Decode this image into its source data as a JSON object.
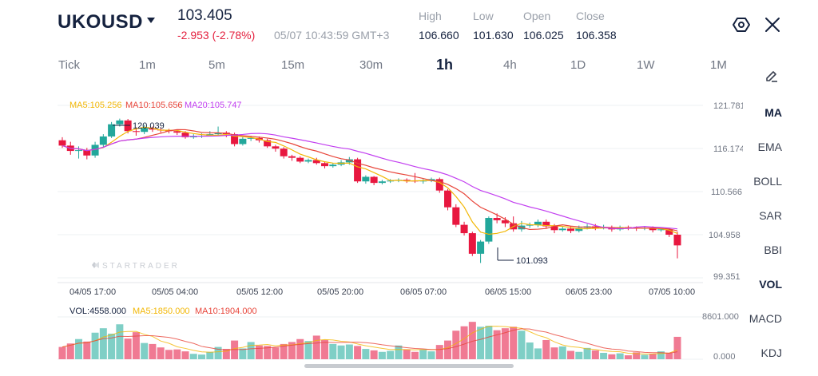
{
  "header": {
    "symbol": "UKOUSD",
    "price": "103.405",
    "change": "-2.953 (-2.78%)",
    "datetime": "05/07 10:43:59 GMT+3",
    "stats": [
      {
        "label": "High",
        "value": "106.660"
      },
      {
        "label": "Low",
        "value": "101.630"
      },
      {
        "label": "Open",
        "value": "106.025"
      },
      {
        "label": "Close",
        "value": "106.358"
      }
    ]
  },
  "timeframes": [
    "Tick",
    "1m",
    "5m",
    "15m",
    "30m",
    "1h",
    "4h",
    "1D",
    "1W",
    "1M"
  ],
  "active_timeframe": "1h",
  "indicators": [
    "MA",
    "EMA",
    "BOLL",
    "SAR",
    "BBI",
    "VOL",
    "MACD",
    "KDJ"
  ],
  "active_indicators": [
    "MA",
    "VOL"
  ],
  "main_legend": {
    "ma5": "MA5:105.256",
    "ma10": "MA10:105.656",
    "ma20": "MA20:105.747"
  },
  "vol_legend": {
    "vol": "VOL:4558.000",
    "ma5": "MA5:1850.000",
    "ma10": "MA10:1904.000"
  },
  "price_axis": [
    "121.781",
    "116.174",
    "110.566",
    "104.958",
    "99.351"
  ],
  "vol_axis": [
    "8601.000",
    "0.000"
  ],
  "time_axis": [
    "04/05 17:00",
    "05/05 04:00",
    "05/05 12:00",
    "05/05 20:00",
    "06/05 07:00",
    "06/05 15:00",
    "06/05 23:00",
    "07/05 10:00"
  ],
  "annotations": {
    "high": "120.039",
    "low": "101.093"
  },
  "watermark": "STARTRADER",
  "colors": {
    "up": "#22a79b",
    "down": "#e8173f",
    "ma5": "#f2b705",
    "ma10": "#e8453a",
    "ma20": "#c23ff0",
    "up_vol": "#7fcfc6",
    "down_vol": "#f07a93"
  },
  "chart_data": {
    "type": "candlestick",
    "ylim": [
      99.351,
      121.781
    ],
    "candles": [
      [
        117.2,
        116.5,
        117.6,
        116.2
      ],
      [
        116.5,
        115.8,
        117.0,
        115.3
      ],
      [
        115.8,
        115.9,
        116.4,
        114.8
      ],
      [
        115.9,
        115.2,
        116.2,
        114.7
      ],
      [
        115.2,
        116.6,
        117.0,
        114.9
      ],
      [
        116.6,
        117.7,
        118.0,
        116.3
      ],
      [
        117.7,
        119.3,
        119.6,
        117.5
      ],
      [
        119.3,
        119.8,
        120.04,
        119.0
      ],
      [
        119.8,
        118.4,
        120.0,
        118.1
      ],
      [
        118.4,
        118.3,
        118.9,
        117.8
      ],
      [
        118.3,
        118.8,
        119.2,
        118.0
      ],
      [
        118.8,
        118.6,
        119.0,
        118.3
      ],
      [
        118.6,
        118.5,
        118.8,
        118.2
      ],
      [
        118.5,
        118.4,
        118.7,
        118.1
      ],
      [
        118.4,
        118.2,
        118.6,
        117.9
      ],
      [
        118.2,
        117.6,
        118.4,
        117.4
      ],
      [
        117.6,
        117.7,
        118.0,
        117.4
      ],
      [
        117.7,
        117.8,
        118.1,
        117.5
      ],
      [
        117.8,
        118.0,
        118.4,
        117.7
      ],
      [
        118.0,
        118.2,
        119.0,
        117.8
      ],
      [
        118.2,
        118.0,
        118.4,
        117.6
      ],
      [
        118.0,
        116.7,
        118.2,
        116.4
      ],
      [
        116.7,
        117.4,
        117.7,
        116.5
      ],
      [
        117.4,
        117.5,
        117.8,
        117.1
      ],
      [
        117.5,
        117.2,
        117.7,
        116.9
      ],
      [
        117.2,
        116.4,
        117.4,
        116.2
      ],
      [
        116.4,
        116.1,
        116.6,
        115.7
      ],
      [
        116.1,
        115.1,
        116.3,
        114.8
      ],
      [
        115.1,
        114.9,
        115.3,
        114.5
      ],
      [
        114.9,
        114.4,
        115.1,
        114.2
      ],
      [
        114.4,
        114.6,
        114.8,
        114.2
      ],
      [
        114.6,
        114.2,
        114.9,
        114.0
      ],
      [
        114.2,
        113.8,
        114.4,
        113.5
      ],
      [
        113.8,
        114.0,
        114.2,
        113.6
      ],
      [
        114.0,
        114.3,
        114.6,
        113.8
      ],
      [
        114.3,
        114.7,
        115.0,
        114.0
      ],
      [
        114.7,
        111.8,
        114.9,
        111.6
      ],
      [
        111.8,
        112.4,
        112.6,
        111.5
      ],
      [
        112.4,
        111.6,
        112.5,
        111.3
      ],
      [
        111.6,
        111.8,
        112.0,
        111.4
      ],
      [
        111.8,
        111.9,
        112.1,
        111.6
      ],
      [
        111.9,
        112.0,
        112.2,
        111.7
      ],
      [
        112.0,
        111.9,
        112.2,
        111.6
      ],
      [
        111.9,
        111.8,
        112.9,
        111.6
      ],
      [
        111.8,
        111.9,
        112.1,
        111.5
      ],
      [
        111.9,
        112.1,
        112.3,
        111.7
      ],
      [
        112.1,
        110.6,
        112.3,
        110.3
      ],
      [
        110.6,
        108.4,
        110.8,
        108.0
      ],
      [
        108.4,
        106.1,
        108.8,
        105.8
      ],
      [
        106.1,
        105.0,
        106.5,
        104.7
      ],
      [
        105.0,
        102.3,
        105.2,
        102.0
      ],
      [
        102.3,
        103.9,
        104.1,
        101.09
      ],
      [
        103.9,
        107.0,
        107.2,
        103.6
      ],
      [
        107.0,
        106.7,
        107.6,
        106.3
      ],
      [
        106.7,
        106.3,
        107.1,
        105.8
      ],
      [
        106.3,
        105.5,
        107.2,
        105.2
      ],
      [
        105.5,
        106.0,
        106.6,
        105.2
      ],
      [
        106.0,
        106.1,
        106.4,
        105.7
      ],
      [
        106.1,
        106.5,
        106.8,
        105.8
      ],
      [
        106.5,
        105.9,
        106.8,
        105.6
      ],
      [
        105.9,
        105.4,
        106.2,
        105.0
      ],
      [
        105.4,
        105.6,
        105.9,
        105.2
      ],
      [
        105.6,
        105.3,
        105.9,
        105.0
      ],
      [
        105.3,
        105.7,
        106.0,
        105.1
      ],
      [
        105.7,
        105.9,
        106.2,
        105.5
      ],
      [
        105.9,
        105.7,
        106.2,
        105.4
      ],
      [
        105.7,
        105.8,
        106.1,
        105.5
      ],
      [
        105.8,
        105.5,
        106.0,
        105.2
      ],
      [
        105.5,
        105.8,
        106.0,
        105.3
      ],
      [
        105.8,
        105.7,
        106.0,
        105.4
      ],
      [
        105.7,
        105.6,
        105.9,
        105.3
      ],
      [
        105.6,
        105.7,
        105.9,
        105.4
      ],
      [
        105.7,
        105.4,
        105.9,
        105.1
      ],
      [
        105.4,
        105.5,
        105.7,
        105.2
      ],
      [
        105.5,
        104.8,
        105.7,
        104.5
      ],
      [
        104.8,
        103.4,
        105.2,
        101.7
      ]
    ],
    "volume_ylim": [
      0,
      8601
    ],
    "volumes": [
      2500,
      3200,
      4100,
      3600,
      5400,
      6300,
      5200,
      7100,
      4200,
      5500,
      3300,
      3100,
      2400,
      1900,
      2000,
      1600,
      1100,
      950,
      1500,
      2500,
      2100,
      3800,
      2200,
      3500,
      2800,
      2700,
      2400,
      3100,
      3500,
      4100,
      3700,
      4800,
      3900,
      3100,
      2800,
      3000,
      2700,
      2100,
      1800,
      1500,
      1700,
      2800,
      2000,
      1500,
      1900,
      1600,
      2900,
      3800,
      5800,
      6700,
      7600,
      6600,
      6800,
      5900,
      6300,
      6600,
      5800,
      3400,
      2200,
      3900,
      2400,
      2600,
      1700,
      1500,
      2300,
      1800,
      1300,
      1000,
      1200,
      800,
      1400,
      900,
      1100,
      1600,
      1300,
      4558
    ]
  }
}
